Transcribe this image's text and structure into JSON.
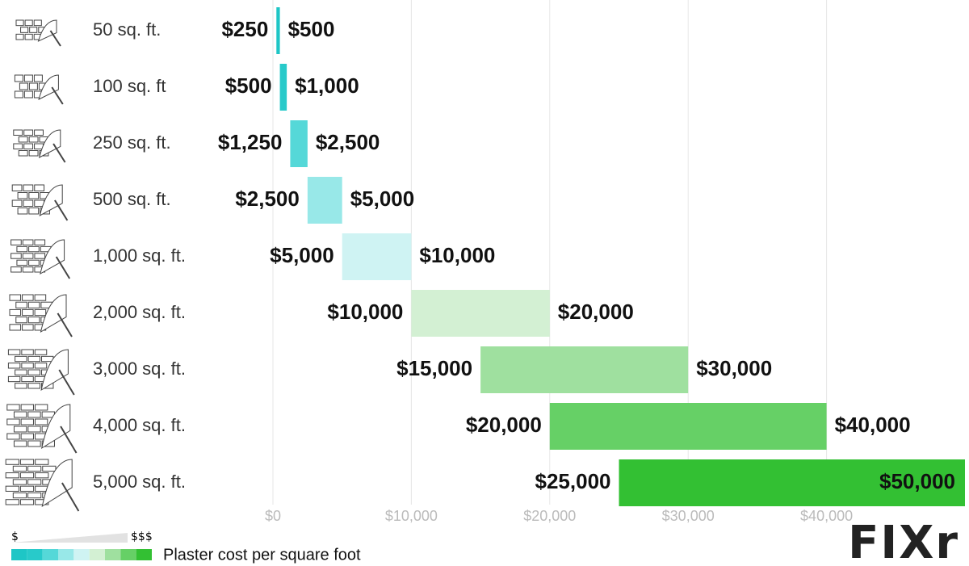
{
  "chart_data": {
    "type": "range_bar",
    "categories": [
      "50 sq. ft.",
      "100 sq. ft",
      "250 sq. ft.",
      "500 sq. ft.",
      "1,000 sq. ft.",
      "2,000 sq. ft.",
      "3,000 sq. ft.",
      "4,000 sq. ft.",
      "5,000 sq. ft."
    ],
    "low": {
      "values": [
        250,
        500,
        1250,
        2500,
        5000,
        10000,
        15000,
        20000,
        25000
      ],
      "value_labels": [
        "$250",
        "$500",
        "$1,250",
        "$2,500",
        "$5,000",
        "$10,000",
        "$15,000",
        "$20,000",
        "$25,000"
      ]
    },
    "high": {
      "values": [
        500,
        1000,
        2500,
        5000,
        10000,
        20000,
        30000,
        40000,
        50000
      ],
      "value_labels": [
        "$500",
        "$1,000",
        "$2,500",
        "$5,000",
        "$10,000",
        "$20,000",
        "$30,000",
        "$40,000",
        "$50,000"
      ]
    },
    "colors": [
      "#1ec6c6",
      "#28caca",
      "#55d8d8",
      "#98e8e8",
      "#cff3f3",
      "#d3f0d3",
      "#9fe09f",
      "#66d066",
      "#33c033"
    ],
    "xlim": [
      0,
      50000
    ],
    "xticks": [
      {
        "value": 0,
        "label": "$0"
      },
      {
        "value": 10000,
        "label": "$10,000"
      },
      {
        "value": 20000,
        "label": "$20,000"
      },
      {
        "value": 30000,
        "label": "$30,000"
      },
      {
        "value": 40000,
        "label": "$40,000"
      }
    ],
    "grid": true,
    "legend": {
      "low_label": "$",
      "high_label": "$$$",
      "text": "Plaster cost per square foot"
    },
    "logo": "FIXr"
  }
}
